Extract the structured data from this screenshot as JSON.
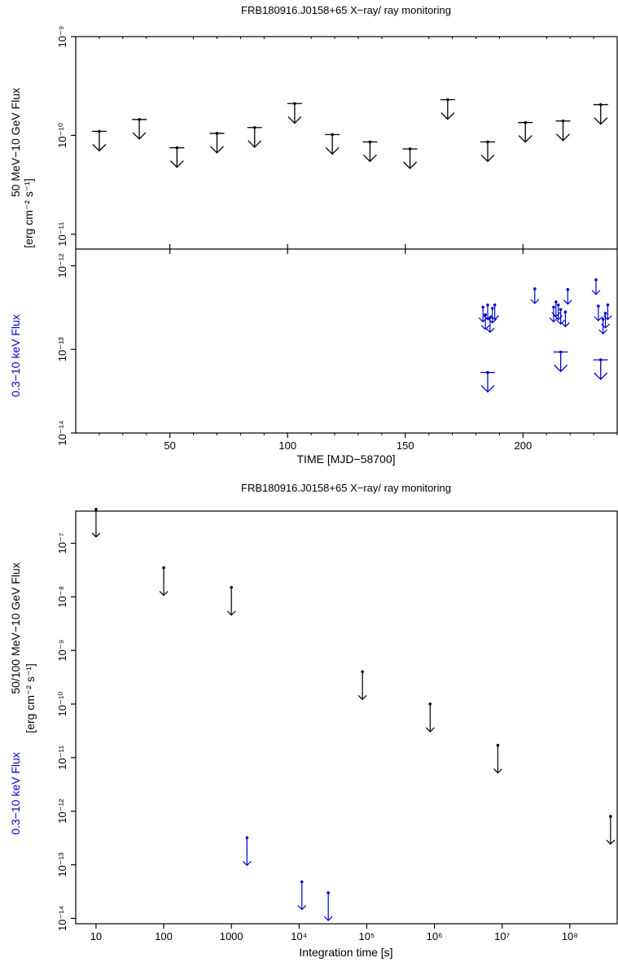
{
  "chart_data": [
    {
      "panel": "top",
      "type": "scatter",
      "title": "FRB180916.J0158+65 X−ray/ ray monitoring",
      "xlabel": "TIME [MJD−58700]",
      "xlim": [
        10,
        240
      ],
      "x_ticks": [
        50,
        100,
        150,
        200
      ],
      "gamma": {
        "ylabel_line1": "50 MeV−10 GeV Flux",
        "ylim_log10": [
          -11.15,
          -9.0
        ],
        "y_ticks": [
          "10⁻¹¹",
          "10⁻¹⁰",
          "10⁻⁹"
        ],
        "y_tick_values": [
          -11,
          -10,
          -9
        ],
        "color": "#000000",
        "upper_limits": [
          {
            "x": 20,
            "y": 1.1e-10
          },
          {
            "x": 37,
            "y": 1.45e-10
          },
          {
            "x": 53,
            "y": 7.5e-11
          },
          {
            "x": 70,
            "y": 1.05e-10
          },
          {
            "x": 86,
            "y": 1.2e-10
          },
          {
            "x": 103,
            "y": 2.1e-10
          },
          {
            "x": 119,
            "y": 1.02e-10
          },
          {
            "x": 135,
            "y": 8.6e-11
          },
          {
            "x": 152,
            "y": 7.3e-11
          },
          {
            "x": 168,
            "y": 2.3e-10
          },
          {
            "x": 185,
            "y": 8.6e-11
          },
          {
            "x": 201,
            "y": 1.35e-10
          },
          {
            "x": 217,
            "y": 1.4e-10
          },
          {
            "x": 233,
            "y": 2.05e-10
          }
        ]
      },
      "shared_ylabel_line2": "[erg cm⁻² s⁻¹]",
      "xray": {
        "ylabel": "0.3−10 keV Flux",
        "ylim_log10": [
          -14,
          -11.8
        ],
        "y_ticks": [
          "10⁻¹⁴",
          "10⁻¹³",
          "10⁻¹²"
        ],
        "y_tick_values": [
          -14,
          -13,
          -12
        ],
        "color": "#0000cc",
        "upper_limits": [
          {
            "x": 183,
            "y": 3.2e-13,
            "big": false
          },
          {
            "x": 184,
            "y": 2.6e-13,
            "big": false
          },
          {
            "x": 185,
            "y": 3.4e-13,
            "big": false
          },
          {
            "x": 186,
            "y": 2.4e-13,
            "big": false
          },
          {
            "x": 187,
            "y": 3.1e-13,
            "big": false
          },
          {
            "x": 188,
            "y": 3.4e-13,
            "big": false
          },
          {
            "x": 185,
            "y": 5.3e-14,
            "big": true
          },
          {
            "x": 205,
            "y": 5.3e-13,
            "big": false
          },
          {
            "x": 213,
            "y": 3.2e-13,
            "big": false
          },
          {
            "x": 214,
            "y": 3.7e-13,
            "big": false
          },
          {
            "x": 215,
            "y": 3.4e-13,
            "big": false
          },
          {
            "x": 216,
            "y": 3e-13,
            "big": false
          },
          {
            "x": 218,
            "y": 2.8e-13,
            "big": false
          },
          {
            "x": 219,
            "y": 5.2e-13,
            "big": false
          },
          {
            "x": 216,
            "y": 9.3e-14,
            "big": true
          },
          {
            "x": 231,
            "y": 6.8e-13,
            "big": false
          },
          {
            "x": 232,
            "y": 3.3e-13,
            "big": false
          },
          {
            "x": 234,
            "y": 2.3e-13,
            "big": false
          },
          {
            "x": 235,
            "y": 2.7e-13,
            "big": false
          },
          {
            "x": 236,
            "y": 3.4e-13,
            "big": false
          },
          {
            "x": 233,
            "y": 7.5e-14,
            "big": true
          }
        ]
      }
    },
    {
      "panel": "bottom",
      "type": "scatter",
      "title": "FRB180916.J0158+65 X−ray/ ray monitoring",
      "xlabel": "Integration time [s]",
      "x_scale": "log",
      "xlim_log10": [
        0.7,
        8.7
      ],
      "x_ticks": [
        "10",
        "100",
        "1000",
        "10⁴",
        "10⁵",
        "10⁶",
        "10⁷",
        "10⁸"
      ],
      "x_tick_values": [
        1,
        2,
        3,
        4,
        5,
        6,
        7,
        8
      ],
      "y_scale": "log",
      "ylim_log10": [
        -14.1,
        -6.4
      ],
      "y_ticks": [
        "10⁻¹⁴",
        "10⁻¹³",
        "10⁻¹²",
        "10⁻¹¹",
        "10⁻¹⁰",
        "10⁻⁹",
        "10⁻⁸",
        "10⁻⁷"
      ],
      "y_tick_values": [
        -14,
        -13,
        -12,
        -11,
        -10,
        -9,
        -8,
        -7
      ],
      "ylabel_gamma": "50/100 MeV−10 GeV Flux",
      "ylabel_units": "[erg cm⁻² s⁻¹]",
      "ylabel_xray": "0.3−10 keV Flux",
      "gamma_color": "#000000",
      "xray_color": "#0000cc",
      "gamma_upper_limits": [
        {
          "x": 10,
          "y": 4.3e-07
        },
        {
          "x": 100,
          "y": 3.5e-08
        },
        {
          "x": 1000,
          "y": 1.5e-08
        },
        {
          "x": 86400,
          "y": 4e-10
        },
        {
          "x": 864000,
          "y": 1e-10
        },
        {
          "x": 8640000,
          "y": 1.7e-11
        },
        {
          "x": 400000000,
          "y": 8e-13
        }
      ],
      "xray_upper_limits": [
        {
          "x": 1700,
          "y": 3.2e-13
        },
        {
          "x": 11000,
          "y": 4.8e-14
        },
        {
          "x": 27000,
          "y": 3e-14
        }
      ]
    }
  ]
}
